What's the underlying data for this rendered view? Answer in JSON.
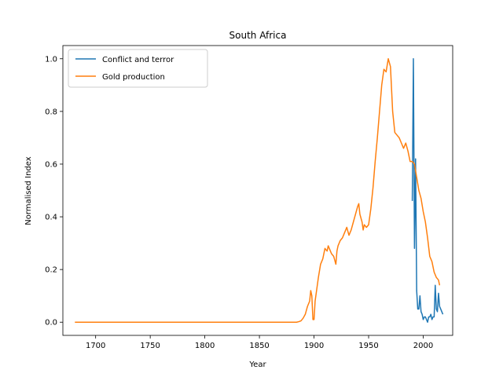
{
  "chart_data": {
    "type": "line",
    "title": "South Africa",
    "xlabel": "Year",
    "ylabel": "Normalised Index",
    "xlim": [
      1670,
      2027
    ],
    "ylim": [
      -0.05,
      1.05
    ],
    "xticks": [
      1700,
      1750,
      1800,
      1850,
      1900,
      1950,
      2000
    ],
    "yticks": [
      0.0,
      0.2,
      0.4,
      0.6,
      0.8,
      1.0
    ],
    "xtick_labels": [
      "1700",
      "1750",
      "1800",
      "1850",
      "1900",
      "1950",
      "2000"
    ],
    "ytick_labels": [
      "0.0",
      "0.2",
      "0.4",
      "0.6",
      "0.8",
      "1.0"
    ],
    "grid": false,
    "legend_position": "top-left",
    "series": [
      {
        "name": "Conflict and terror",
        "color": "#1f77b4",
        "x": [
          1990,
          1991,
          1992,
          1993,
          1994,
          1995,
          1996,
          1997,
          1998,
          1999,
          2000,
          2001,
          2002,
          2003,
          2004,
          2005,
          2006,
          2007,
          2008,
          2009,
          2010,
          2011,
          2012,
          2013,
          2014,
          2015,
          2016,
          2017,
          2018
        ],
        "y": [
          0.46,
          1.0,
          0.28,
          0.62,
          0.12,
          0.05,
          0.05,
          0.1,
          0.04,
          0.03,
          0.01,
          0.02,
          0.02,
          0.01,
          0.0,
          0.02,
          0.02,
          0.03,
          0.01,
          0.02,
          0.02,
          0.14,
          0.05,
          0.04,
          0.11,
          0.06,
          0.05,
          0.04,
          0.03
        ]
      },
      {
        "name": "Gold production",
        "color": "#ff7f0e",
        "x": [
          1681,
          1700,
          1750,
          1800,
          1850,
          1870,
          1880,
          1884,
          1886,
          1888,
          1890,
          1892,
          1894,
          1896,
          1897,
          1898,
          1899,
          1900,
          1901,
          1902,
          1904,
          1906,
          1908,
          1910,
          1912,
          1913,
          1914,
          1916,
          1918,
          1920,
          1921,
          1922,
          1924,
          1926,
          1928,
          1930,
          1932,
          1934,
          1936,
          1938,
          1940,
          1941,
          1942,
          1944,
          1945,
          1946,
          1948,
          1950,
          1952,
          1954,
          1956,
          1958,
          1960,
          1962,
          1964,
          1966,
          1968,
          1970,
          1972,
          1974,
          1976,
          1978,
          1980,
          1982,
          1984,
          1986,
          1988,
          1990,
          1992,
          1994,
          1996,
          1998,
          2000,
          2002,
          2004,
          2006,
          2008,
          2010,
          2012,
          2014,
          2015
        ],
        "y": [
          0.0,
          0.0,
          0.0,
          0.0,
          0.0,
          0.0,
          0.0,
          0.0,
          0.002,
          0.005,
          0.015,
          0.03,
          0.06,
          0.08,
          0.12,
          0.1,
          0.01,
          0.01,
          0.08,
          0.11,
          0.17,
          0.22,
          0.24,
          0.28,
          0.27,
          0.29,
          0.28,
          0.26,
          0.25,
          0.22,
          0.27,
          0.29,
          0.31,
          0.32,
          0.34,
          0.36,
          0.33,
          0.35,
          0.38,
          0.41,
          0.44,
          0.45,
          0.41,
          0.38,
          0.35,
          0.37,
          0.36,
          0.37,
          0.43,
          0.51,
          0.61,
          0.7,
          0.8,
          0.9,
          0.96,
          0.95,
          1.0,
          0.97,
          0.8,
          0.72,
          0.71,
          0.7,
          0.68,
          0.66,
          0.68,
          0.65,
          0.61,
          0.61,
          0.6,
          0.55,
          0.5,
          0.47,
          0.42,
          0.38,
          0.32,
          0.25,
          0.23,
          0.19,
          0.17,
          0.16,
          0.14
        ]
      }
    ]
  }
}
